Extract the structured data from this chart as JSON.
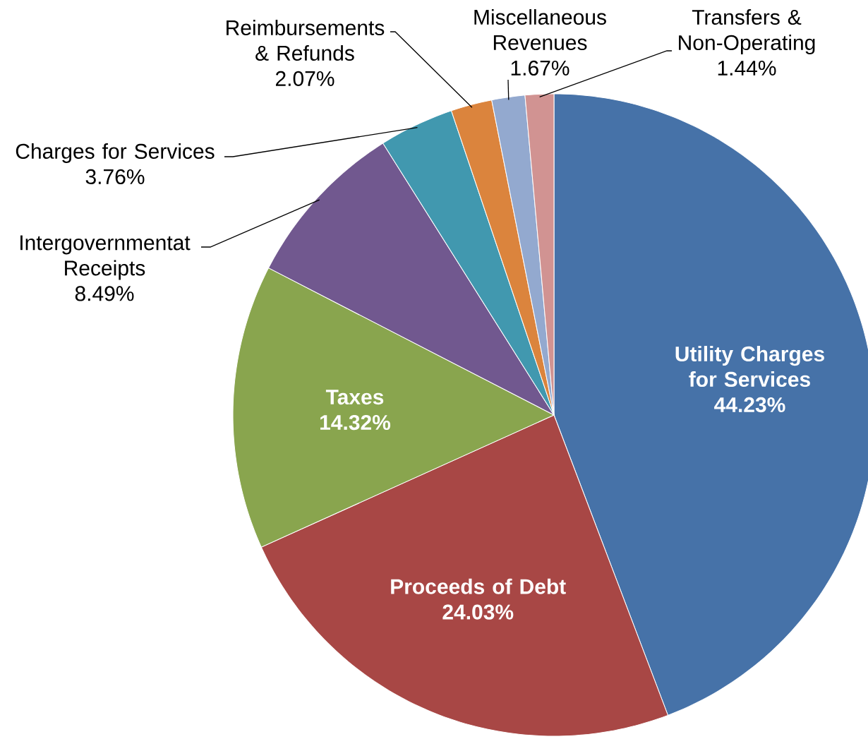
{
  "chart_data": {
    "type": "pie",
    "categories": [
      "Utility Charges for Services",
      "Proceeds of Debt",
      "Taxes",
      "Intergovernmentat Receipts",
      "Charges for Services",
      "Reimbursements & Refunds",
      "Miscellaneous Revenues",
      "Transfers & Non-Operating"
    ],
    "values": [
      44.23,
      24.03,
      14.32,
      8.49,
      3.76,
      2.07,
      1.67,
      1.44
    ],
    "value_labels": [
      "44.23%",
      "24.03%",
      "14.32%",
      "8.49%",
      "3.76%",
      "2.07%",
      "1.67%",
      "1.44%"
    ],
    "colors": [
      "#4672a8",
      "#a84745",
      "#89a54e",
      "#71588f",
      "#4198af",
      "#db843d",
      "#93a9cf",
      "#d19392"
    ]
  }
}
